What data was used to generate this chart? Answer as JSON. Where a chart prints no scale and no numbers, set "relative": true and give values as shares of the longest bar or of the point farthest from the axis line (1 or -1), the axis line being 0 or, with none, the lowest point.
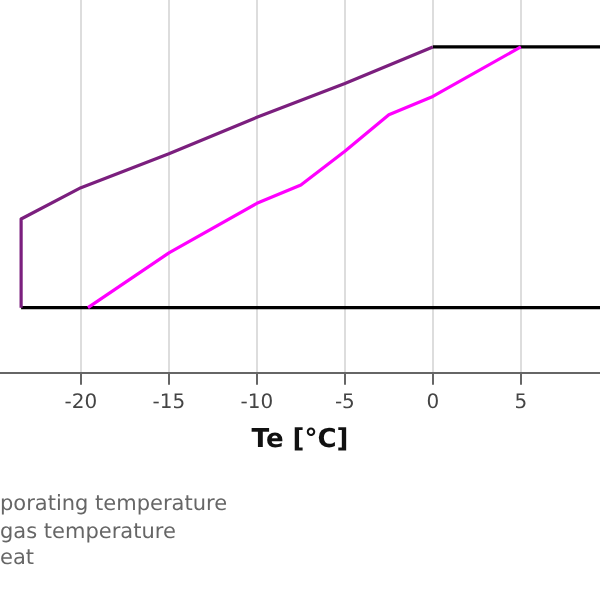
{
  "chart_data": {
    "type": "line",
    "relative": true,
    "xlabel": "Te [°C]",
    "xlim": [
      -24.6,
      9.5
    ],
    "xticks": [
      -20,
      -15,
      -10,
      -5,
      0,
      5
    ],
    "grid": "x",
    "legend": false,
    "marker": "none",
    "line_style": "solid",
    "series": [
      {
        "color": "#7b1f7e",
        "x": [
          -23.4,
          -23.4,
          -20,
          -15,
          -10,
          -5,
          0
        ],
        "values": [
          0,
          0.34,
          0.46,
          0.59,
          0.73,
          0.86,
          1
        ]
      },
      {
        "color": "#ff00ff",
        "x": [
          -19.6,
          -15,
          -10,
          -7.5,
          -5,
          -2.5,
          0,
          5
        ],
        "values": [
          0,
          0.21,
          0.4,
          0.47,
          0.6,
          0.74,
          0.81,
          1
        ]
      },
      {
        "color": "#000000",
        "x": [
          -23.4,
          9.5
        ],
        "values": [
          0,
          0
        ]
      },
      {
        "color": "#000000",
        "x": [
          0,
          9.5
        ],
        "values": [
          1,
          1
        ]
      }
    ],
    "annotations": [
      "porating temperature",
      "gas temperature",
      "eat"
    ]
  }
}
